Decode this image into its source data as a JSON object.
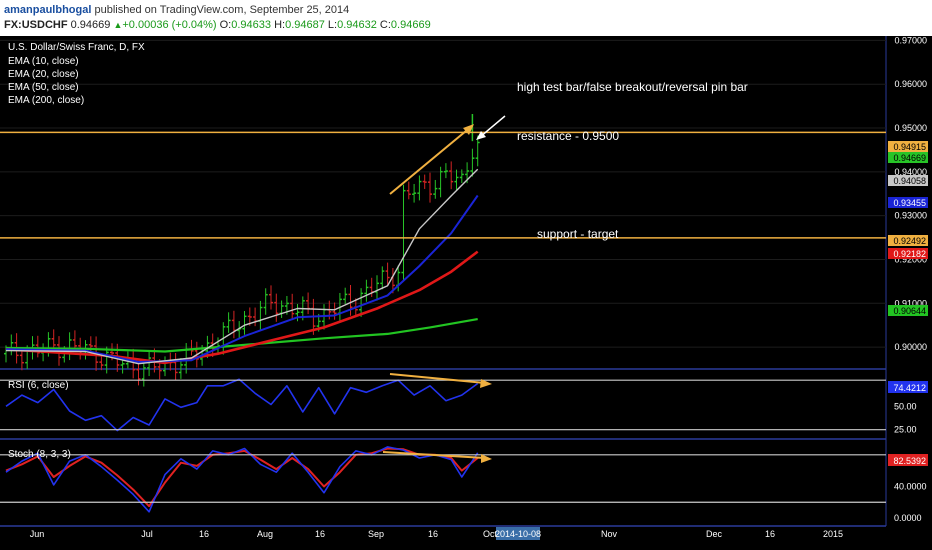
{
  "header": {
    "author": "amanpaulbhogal",
    "published": " published on TradingView.com, September 25, 2014",
    "symbol": "FX:USDCHF",
    "last": "0.94669",
    "tri": "▲",
    "change": "+0.00036 (+0.04%)",
    "o_label": "O:",
    "o_value": "0.94633",
    "h_label": "H:",
    "h_value": "0.94687",
    "l_label": "L:",
    "l_value": "0.94632",
    "c_label": "C:",
    "c_value": "0.94669"
  },
  "legend": {
    "title": "U.S. Dollar/Swiss Franc, D, FX",
    "ema10": "EMA (10, close)",
    "ema20": "EMA (20, close)",
    "ema50": "EMA (50, close)",
    "ema200": "EMA (200, close)"
  },
  "annotations": {
    "pinbar": "high test bar/false breakout/reversal pin bar",
    "resistance": "resistance - 0.9500",
    "support": "support - target"
  },
  "badges": {
    "resistance": "0.94915",
    "last": "0.94669",
    "ema10": "0.94058",
    "ema20": "0.93455",
    "support": "0.92492",
    "ema50": "0.92182",
    "ema200": "0.90644",
    "rsi": "74.4212",
    "stoch": "82.5392"
  },
  "rsi_label": "RSI (6, close)",
  "stoch_label": "Stoch (8, 3, 3)",
  "x_ticks": [
    "Jun",
    "Jul",
    "16",
    "Aug",
    "16",
    "Sep",
    "16",
    "Oct",
    "Nov",
    "Dec",
    "16",
    "2015"
  ],
  "cursor_date": "2014-10-08",
  "colors": {
    "bg": "#000000",
    "up": "#27c427",
    "down": "#d42424",
    "ema10": "#c8c8c8",
    "ema20": "#1a24d6",
    "ema50": "#e01818",
    "ema200": "#22c422",
    "level": "#f0b040",
    "rsi": "#2233ee",
    "stoch_k": "#2233ee",
    "stoch_d": "#e02222"
  },
  "chart_data": {
    "type": "candlestick",
    "title": "U.S. Dollar/Swiss Franc, D, FX",
    "y_ticks": [
      0.9,
      0.91,
      0.92,
      0.93,
      0.94,
      0.95,
      0.96,
      0.97
    ],
    "ylim": [
      0.895,
      0.971
    ],
    "resistance": 0.949,
    "support": 0.92492,
    "close_points": [
      [
        0,
        0.8985
      ],
      [
        5,
        0.8992
      ],
      [
        10,
        0.9002
      ],
      [
        14,
        0.8998
      ],
      [
        18,
        0.898
      ],
      [
        22,
        0.8962
      ],
      [
        26,
        0.895
      ],
      [
        30,
        0.8958
      ],
      [
        34,
        0.8972
      ],
      [
        38,
        0.9
      ],
      [
        41,
        0.903
      ],
      [
        44,
        0.9055
      ],
      [
        47,
        0.9078
      ],
      [
        50,
        0.91
      ],
      [
        53,
        0.9092
      ],
      [
        56,
        0.9082
      ],
      [
        58,
        0.9068
      ],
      [
        60,
        0.9075
      ],
      [
        63,
        0.9095
      ],
      [
        66,
        0.9108
      ],
      [
        69,
        0.9135
      ],
      [
        72,
        0.916
      ],
      [
        74,
        0.9175
      ],
      [
        75,
        0.934
      ],
      [
        77,
        0.9358
      ],
      [
        80,
        0.9372
      ],
      [
        83,
        0.939
      ],
      [
        86,
        0.938
      ],
      [
        87,
        0.9415
      ],
      [
        88,
        0.9455
      ],
      [
        89,
        0.9467
      ]
    ],
    "ema10_points": [
      [
        0,
        0.8992
      ],
      [
        15,
        0.899
      ],
      [
        25,
        0.8962
      ],
      [
        35,
        0.8975
      ],
      [
        45,
        0.905
      ],
      [
        55,
        0.9088
      ],
      [
        62,
        0.9085
      ],
      [
        72,
        0.914
      ],
      [
        78,
        0.927
      ],
      [
        84,
        0.9345
      ],
      [
        89,
        0.9406
      ]
    ],
    "ema20_points": [
      [
        0,
        0.8995
      ],
      [
        15,
        0.8992
      ],
      [
        25,
        0.8966
      ],
      [
        35,
        0.897
      ],
      [
        45,
        0.9025
      ],
      [
        55,
        0.9068
      ],
      [
        62,
        0.9072
      ],
      [
        72,
        0.9118
      ],
      [
        78,
        0.9185
      ],
      [
        84,
        0.926
      ],
      [
        89,
        0.9346
      ]
    ],
    "ema50_points": [
      [
        0,
        0.8995
      ],
      [
        20,
        0.898
      ],
      [
        30,
        0.8964
      ],
      [
        40,
        0.8985
      ],
      [
        50,
        0.9015
      ],
      [
        60,
        0.9045
      ],
      [
        70,
        0.9088
      ],
      [
        78,
        0.913
      ],
      [
        84,
        0.9172
      ],
      [
        89,
        0.9218
      ]
    ],
    "ema200_points": [
      [
        0,
        0.8998
      ],
      [
        15,
        0.8996
      ],
      [
        30,
        0.899
      ],
      [
        45,
        0.9005
      ],
      [
        60,
        0.902
      ],
      [
        72,
        0.903
      ],
      [
        80,
        0.9045
      ],
      [
        89,
        0.9064
      ]
    ],
    "rsi": {
      "label": "RSI (6, close)",
      "ylim": [
        15,
        90
      ],
      "y_ticks": [
        25,
        50
      ],
      "points": [
        [
          0,
          50
        ],
        [
          3,
          62
        ],
        [
          6,
          54
        ],
        [
          9,
          68
        ],
        [
          12,
          45
        ],
        [
          15,
          35
        ],
        [
          18,
          40
        ],
        [
          21,
          24
        ],
        [
          24,
          38
        ],
        [
          27,
          30
        ],
        [
          30,
          58
        ],
        [
          33,
          49
        ],
        [
          36,
          54
        ],
        [
          38,
          72
        ],
        [
          41,
          72
        ],
        [
          44,
          79
        ],
        [
          47,
          64
        ],
        [
          50,
          52
        ],
        [
          53,
          72
        ],
        [
          56,
          44
        ],
        [
          59,
          70
        ],
        [
          62,
          42
        ],
        [
          65,
          70
        ],
        [
          68,
          65
        ],
        [
          71,
          72
        ],
        [
          74,
          78
        ],
        [
          77,
          62
        ],
        [
          80,
          72
        ],
        [
          83,
          56
        ],
        [
          86,
          62
        ],
        [
          89,
          74.42
        ]
      ]
    },
    "stoch": {
      "label": "Stoch (8, 3, 3)",
      "ylim": [
        -10,
        100
      ],
      "y_ticks": [
        0,
        40
      ],
      "k_points": [
        [
          0,
          58
        ],
        [
          3,
          72
        ],
        [
          6,
          82
        ],
        [
          9,
          42
        ],
        [
          12,
          72
        ],
        [
          15,
          80
        ],
        [
          18,
          65
        ],
        [
          21,
          48
        ],
        [
          24,
          30
        ],
        [
          27,
          8
        ],
        [
          30,
          55
        ],
        [
          33,
          75
        ],
        [
          36,
          62
        ],
        [
          39,
          85
        ],
        [
          42,
          80
        ],
        [
          45,
          88
        ],
        [
          48,
          68
        ],
        [
          51,
          58
        ],
        [
          54,
          82
        ],
        [
          57,
          58
        ],
        [
          60,
          32
        ],
        [
          63,
          65
        ],
        [
          66,
          85
        ],
        [
          69,
          80
        ],
        [
          72,
          90
        ],
        [
          75,
          86
        ],
        [
          78,
          76
        ],
        [
          81,
          80
        ],
        [
          84,
          74
        ],
        [
          86,
          52
        ],
        [
          89,
          82.54
        ]
      ],
      "d_points": [
        [
          0,
          60
        ],
        [
          3,
          68
        ],
        [
          6,
          78
        ],
        [
          9,
          52
        ],
        [
          12,
          66
        ],
        [
          15,
          78
        ],
        [
          18,
          70
        ],
        [
          21,
          54
        ],
        [
          24,
          36
        ],
        [
          27,
          15
        ],
        [
          30,
          45
        ],
        [
          33,
          70
        ],
        [
          36,
          66
        ],
        [
          39,
          80
        ],
        [
          42,
          82
        ],
        [
          45,
          85
        ],
        [
          48,
          74
        ],
        [
          51,
          62
        ],
        [
          54,
          76
        ],
        [
          57,
          62
        ],
        [
          60,
          40
        ],
        [
          63,
          58
        ],
        [
          66,
          80
        ],
        [
          69,
          82
        ],
        [
          72,
          88
        ],
        [
          75,
          87
        ],
        [
          78,
          80
        ],
        [
          81,
          80
        ],
        [
          84,
          76
        ],
        [
          86,
          60
        ],
        [
          89,
          76
        ]
      ]
    }
  }
}
